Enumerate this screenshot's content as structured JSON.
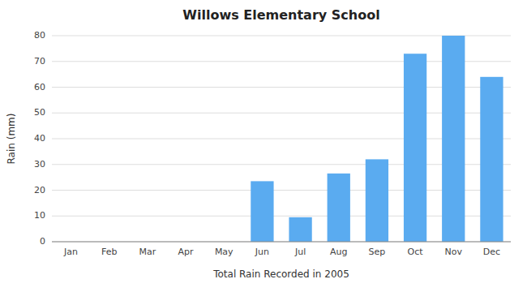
{
  "chart_data": {
    "type": "bar",
    "title": "Willows Elementary School",
    "xlabel": "Total Rain Recorded in 2005",
    "ylabel": "Rain (mm)",
    "categories": [
      "Jan",
      "Feb",
      "Mar",
      "Apr",
      "May",
      "Jun",
      "Jul",
      "Aug",
      "Sep",
      "Oct",
      "Nov",
      "Dec"
    ],
    "values": [
      0,
      0,
      0,
      0,
      0,
      23.5,
      9.5,
      26.5,
      32,
      73,
      80,
      64
    ],
    "color": "#5aabf0",
    "ylim": [
      0,
      80
    ],
    "yticks": [
      0,
      10,
      20,
      30,
      40,
      50,
      60,
      70,
      80
    ],
    "grid": true
  }
}
